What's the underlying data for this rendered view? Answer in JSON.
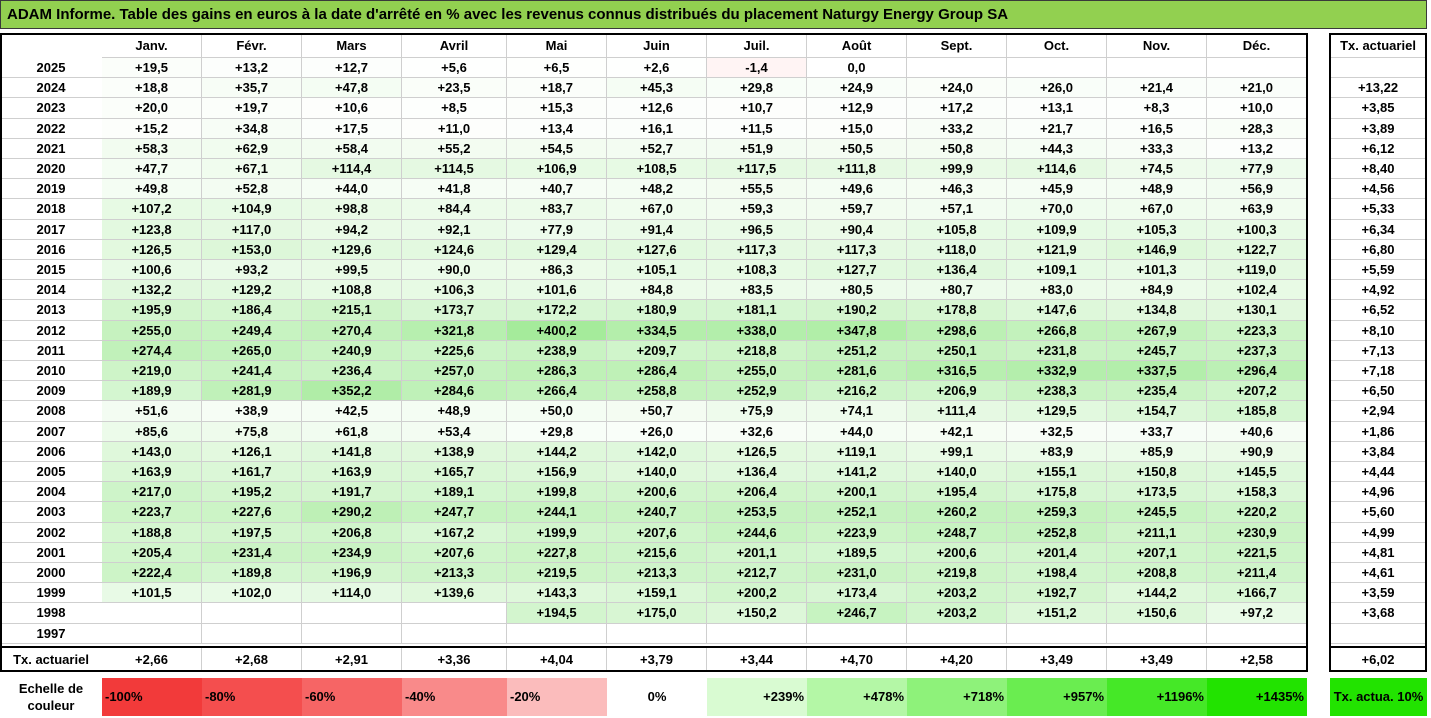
{
  "title": "ADAM Informe. Table des gains en euros à la date d'arrêté en % avec les revenus connus distribués du placement Naturgy Energy Group SA",
  "chart_data": {
    "type": "heatmap",
    "months": [
      "Janv.",
      "Févr.",
      "Mars",
      "Avril",
      "Mai",
      "Juin",
      "Juil.",
      "Août",
      "Sept.",
      "Oct.",
      "Nov.",
      "Déc."
    ],
    "annual_header": "Tx. actuariel",
    "rows": [
      {
        "year": "2025",
        "values": [
          "+19,5",
          "+13,2",
          "+12,7",
          "+5,6",
          "+6,5",
          "+2,6",
          "-1,4",
          "0,0",
          "",
          "",
          "",
          ""
        ],
        "annual": ""
      },
      {
        "year": "2024",
        "values": [
          "+18,8",
          "+35,7",
          "+47,8",
          "+23,5",
          "+18,7",
          "+45,3",
          "+29,8",
          "+24,9",
          "+24,0",
          "+26,0",
          "+21,4",
          "+21,0"
        ],
        "annual": "+13,22"
      },
      {
        "year": "2023",
        "values": [
          "+20,0",
          "+19,7",
          "+10,6",
          "+8,5",
          "+15,3",
          "+12,6",
          "+10,7",
          "+12,9",
          "+17,2",
          "+13,1",
          "+8,3",
          "+10,0"
        ],
        "annual": "+3,85"
      },
      {
        "year": "2022",
        "values": [
          "+15,2",
          "+34,8",
          "+17,5",
          "+11,0",
          "+13,4",
          "+16,1",
          "+11,5",
          "+15,0",
          "+33,2",
          "+21,7",
          "+16,5",
          "+28,3"
        ],
        "annual": "+3,89"
      },
      {
        "year": "2021",
        "values": [
          "+58,3",
          "+62,9",
          "+58,4",
          "+55,2",
          "+54,5",
          "+52,7",
          "+51,9",
          "+50,5",
          "+50,8",
          "+44,3",
          "+33,3",
          "+13,2"
        ],
        "annual": "+6,12"
      },
      {
        "year": "2020",
        "values": [
          "+47,7",
          "+67,1",
          "+114,4",
          "+114,5",
          "+106,9",
          "+108,5",
          "+117,5",
          "+111,8",
          "+99,9",
          "+114,6",
          "+74,5",
          "+77,9"
        ],
        "annual": "+8,40"
      },
      {
        "year": "2019",
        "values": [
          "+49,8",
          "+52,8",
          "+44,0",
          "+41,8",
          "+40,7",
          "+48,2",
          "+55,5",
          "+49,6",
          "+46,3",
          "+45,9",
          "+48,9",
          "+56,9"
        ],
        "annual": "+4,56"
      },
      {
        "year": "2018",
        "values": [
          "+107,2",
          "+104,9",
          "+98,8",
          "+84,4",
          "+83,7",
          "+67,0",
          "+59,3",
          "+59,7",
          "+57,1",
          "+70,0",
          "+67,0",
          "+63,9"
        ],
        "annual": "+5,33"
      },
      {
        "year": "2017",
        "values": [
          "+123,8",
          "+117,0",
          "+94,2",
          "+92,1",
          "+77,9",
          "+91,4",
          "+96,5",
          "+90,4",
          "+105,8",
          "+109,9",
          "+105,3",
          "+100,3"
        ],
        "annual": "+6,34"
      },
      {
        "year": "2016",
        "values": [
          "+126,5",
          "+153,0",
          "+129,6",
          "+124,6",
          "+129,4",
          "+127,6",
          "+117,3",
          "+117,3",
          "+118,0",
          "+121,9",
          "+146,9",
          "+122,7"
        ],
        "annual": "+6,80"
      },
      {
        "year": "2015",
        "values": [
          "+100,6",
          "+93,2",
          "+99,5",
          "+90,0",
          "+86,3",
          "+105,1",
          "+108,3",
          "+127,7",
          "+136,4",
          "+109,1",
          "+101,3",
          "+119,0"
        ],
        "annual": "+5,59"
      },
      {
        "year": "2014",
        "values": [
          "+132,2",
          "+129,2",
          "+108,8",
          "+106,3",
          "+101,6",
          "+84,8",
          "+83,5",
          "+80,5",
          "+80,7",
          "+83,0",
          "+84,9",
          "+102,4"
        ],
        "annual": "+4,92"
      },
      {
        "year": "2013",
        "values": [
          "+195,9",
          "+186,4",
          "+215,1",
          "+173,7",
          "+172,2",
          "+180,9",
          "+181,1",
          "+190,2",
          "+178,8",
          "+147,6",
          "+134,8",
          "+130,1"
        ],
        "annual": "+6,52"
      },
      {
        "year": "2012",
        "values": [
          "+255,0",
          "+249,4",
          "+270,4",
          "+321,8",
          "+400,2",
          "+334,5",
          "+338,0",
          "+347,8",
          "+298,6",
          "+266,8",
          "+267,9",
          "+223,3"
        ],
        "annual": "+8,10"
      },
      {
        "year": "2011",
        "values": [
          "+274,4",
          "+265,0",
          "+240,9",
          "+225,6",
          "+238,9",
          "+209,7",
          "+218,8",
          "+251,2",
          "+250,1",
          "+231,8",
          "+245,7",
          "+237,3"
        ],
        "annual": "+7,13"
      },
      {
        "year": "2010",
        "values": [
          "+219,0",
          "+241,4",
          "+236,4",
          "+257,0",
          "+286,3",
          "+286,4",
          "+255,0",
          "+281,6",
          "+316,5",
          "+332,9",
          "+337,5",
          "+296,4"
        ],
        "annual": "+7,18"
      },
      {
        "year": "2009",
        "values": [
          "+189,9",
          "+281,9",
          "+352,2",
          "+284,6",
          "+266,4",
          "+258,8",
          "+252,9",
          "+216,2",
          "+206,9",
          "+238,3",
          "+235,4",
          "+207,2"
        ],
        "annual": "+6,50"
      },
      {
        "year": "2008",
        "values": [
          "+51,6",
          "+38,9",
          "+42,5",
          "+48,9",
          "+50,0",
          "+50,7",
          "+75,9",
          "+74,1",
          "+111,4",
          "+129,5",
          "+154,7",
          "+185,8"
        ],
        "annual": "+2,94"
      },
      {
        "year": "2007",
        "values": [
          "+85,6",
          "+75,8",
          "+61,8",
          "+53,4",
          "+29,8",
          "+26,0",
          "+32,6",
          "+44,0",
          "+42,1",
          "+32,5",
          "+33,7",
          "+40,6"
        ],
        "annual": "+1,86"
      },
      {
        "year": "2006",
        "values": [
          "+143,0",
          "+126,1",
          "+141,8",
          "+138,9",
          "+144,2",
          "+142,0",
          "+126,5",
          "+119,1",
          "+99,1",
          "+83,9",
          "+85,9",
          "+90,9"
        ],
        "annual": "+3,84"
      },
      {
        "year": "2005",
        "values": [
          "+163,9",
          "+161,7",
          "+163,9",
          "+165,7",
          "+156,9",
          "+140,0",
          "+136,4",
          "+141,2",
          "+140,0",
          "+155,1",
          "+150,8",
          "+145,5"
        ],
        "annual": "+4,44"
      },
      {
        "year": "2004",
        "values": [
          "+217,0",
          "+195,2",
          "+191,7",
          "+189,1",
          "+199,8",
          "+200,6",
          "+206,4",
          "+200,1",
          "+195,4",
          "+175,8",
          "+173,5",
          "+158,3"
        ],
        "annual": "+4,96"
      },
      {
        "year": "2003",
        "values": [
          "+223,7",
          "+227,6",
          "+290,2",
          "+247,7",
          "+244,1",
          "+240,7",
          "+253,5",
          "+252,1",
          "+260,2",
          "+259,3",
          "+245,5",
          "+220,2"
        ],
        "annual": "+5,60"
      },
      {
        "year": "2002",
        "values": [
          "+188,8",
          "+197,5",
          "+206,8",
          "+167,2",
          "+199,9",
          "+207,6",
          "+244,6",
          "+223,9",
          "+248,7",
          "+252,8",
          "+211,1",
          "+230,9"
        ],
        "annual": "+4,99"
      },
      {
        "year": "2001",
        "values": [
          "+205,4",
          "+231,4",
          "+234,9",
          "+207,6",
          "+227,8",
          "+215,6",
          "+201,1",
          "+189,5",
          "+200,6",
          "+201,4",
          "+207,1",
          "+221,5"
        ],
        "annual": "+4,81"
      },
      {
        "year": "2000",
        "values": [
          "+222,4",
          "+189,8",
          "+196,9",
          "+213,3",
          "+219,5",
          "+213,3",
          "+212,7",
          "+231,0",
          "+219,8",
          "+198,4",
          "+208,8",
          "+211,4"
        ],
        "annual": "+4,61"
      },
      {
        "year": "1999",
        "values": [
          "+101,5",
          "+102,0",
          "+114,0",
          "+139,6",
          "+143,3",
          "+159,1",
          "+200,2",
          "+173,4",
          "+203,2",
          "+192,7",
          "+144,2",
          "+166,7"
        ],
        "annual": "+3,59"
      },
      {
        "year": "1998",
        "values": [
          "",
          "",
          "",
          "",
          "+194,5",
          "+175,0",
          "+150,2",
          "+246,7",
          "+203,2",
          "+151,2",
          "+150,6",
          "+97,2"
        ],
        "annual": "+3,68"
      },
      {
        "year": "1997",
        "values": [
          "",
          "",
          "",
          "",
          "",
          "",
          "",
          "",
          "",
          "",
          "",
          ""
        ],
        "annual": ""
      }
    ],
    "footer": {
      "label": "Tx. actuariel",
      "values": [
        "+2,66",
        "+2,68",
        "+2,91",
        "+3,36",
        "+4,04",
        "+3,79",
        "+3,44",
        "+4,70",
        "+4,20",
        "+3,49",
        "+3,49",
        "+2,58"
      ],
      "annual": "+6,02"
    },
    "color_scale": {
      "label": "Echelle de couleur",
      "steps": [
        {
          "text": "-100%",
          "color": "#f23a3a"
        },
        {
          "text": "-80%",
          "color": "#f44e4e"
        },
        {
          "text": "-60%",
          "color": "#f66565"
        },
        {
          "text": "-40%",
          "color": "#f98a8a"
        },
        {
          "text": "-20%",
          "color": "#fbbcbc"
        },
        {
          "text": "0%",
          "color": "#ffffff"
        },
        {
          "text": "+239%",
          "color": "#d9fbd2"
        },
        {
          "text": "+478%",
          "color": "#b4f7a6"
        },
        {
          "text": "+718%",
          "color": "#8ef27a"
        },
        {
          "text": "+957%",
          "color": "#6aed50"
        },
        {
          "text": "+1196%",
          "color": "#45e827"
        },
        {
          "text": "+1435%",
          "color": "#22e300"
        }
      ],
      "reference_label": "Tx. actua. 10%",
      "reference_color": "#22e300"
    }
  }
}
